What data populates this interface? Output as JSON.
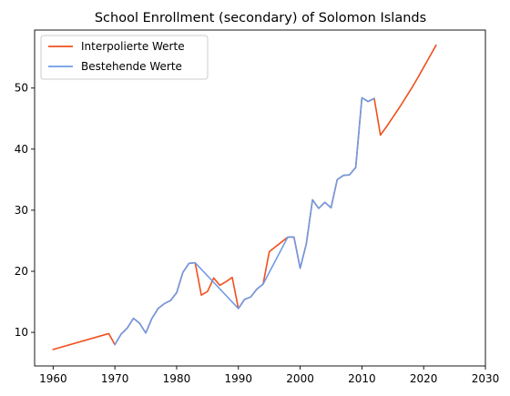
{
  "chart_data": {
    "type": "line",
    "title": "School Enrollment (secondary) of Solomon Islands",
    "xlabel": "",
    "ylabel": "",
    "xlim": [
      1957,
      2030
    ],
    "ylim": [
      4.5,
      59.5
    ],
    "xticks": [
      1960,
      1970,
      1980,
      1990,
      2000,
      2010,
      2020,
      2030
    ],
    "yticks": [
      10,
      20,
      30,
      40,
      50
    ],
    "grid": false,
    "legend_position": "top-left",
    "series": [
      {
        "name": "Interpolierte Werte",
        "color": "#f0501e",
        "x": [
          1960,
          1969,
          1970,
          1971,
          1972,
          1973,
          1974,
          1975,
          1976,
          1977,
          1978,
          1979,
          1980,
          1981,
          1982,
          1983,
          1984,
          1985,
          1986,
          1987,
          1988,
          1989,
          1990,
          1991,
          1992,
          1993,
          1994,
          1995,
          1996,
          1997,
          1998,
          1999,
          2000,
          2001,
          2002,
          2003,
          2004,
          2005,
          2006,
          2007,
          2008,
          2009,
          2010,
          2011,
          2012,
          2013,
          2014,
          2015,
          2016,
          2017,
          2018,
          2019,
          2020,
          2021,
          2022
        ],
        "y": [
          7.2,
          9.8,
          8.0,
          9.7,
          10.7,
          12.3,
          11.5,
          9.9,
          12.3,
          13.9,
          14.7,
          15.2,
          16.5,
          19.8,
          21.3,
          21.4,
          16.1,
          16.7,
          18.9,
          17.7,
          18.3,
          19.0,
          13.9,
          15.4,
          15.8,
          17.1,
          17.9,
          23.2,
          24.0,
          24.8,
          25.6,
          25.6,
          20.5,
          24.5,
          31.7,
          30.3,
          31.3,
          30.4,
          35.0,
          35.7,
          35.8,
          37.0,
          48.4,
          47.8,
          48.3,
          42.3,
          43.7,
          45.2,
          46.7,
          48.3,
          49.9,
          51.6,
          53.4,
          55.2,
          57.0
        ]
      },
      {
        "name": "Bestehende Werte",
        "color": "#6e9be6",
        "x": [
          1970,
          1971,
          1972,
          1973,
          1974,
          1975,
          1976,
          1977,
          1978,
          1979,
          1980,
          1981,
          1982,
          1983,
          1990,
          1991,
          1992,
          1993,
          1994,
          1998,
          1999,
          2000,
          2001,
          2002,
          2003,
          2004,
          2005,
          2006,
          2007,
          2008,
          2009,
          2010,
          2011,
          2012
        ],
        "y": [
          8.0,
          9.7,
          10.7,
          12.3,
          11.5,
          9.9,
          12.3,
          13.9,
          14.7,
          15.2,
          16.5,
          19.8,
          21.3,
          21.4,
          13.9,
          15.4,
          15.8,
          17.1,
          17.9,
          25.6,
          25.6,
          20.5,
          24.5,
          31.7,
          30.3,
          31.3,
          30.4,
          35.0,
          35.7,
          35.8,
          37.0,
          48.4,
          47.8,
          48.3
        ]
      }
    ]
  }
}
